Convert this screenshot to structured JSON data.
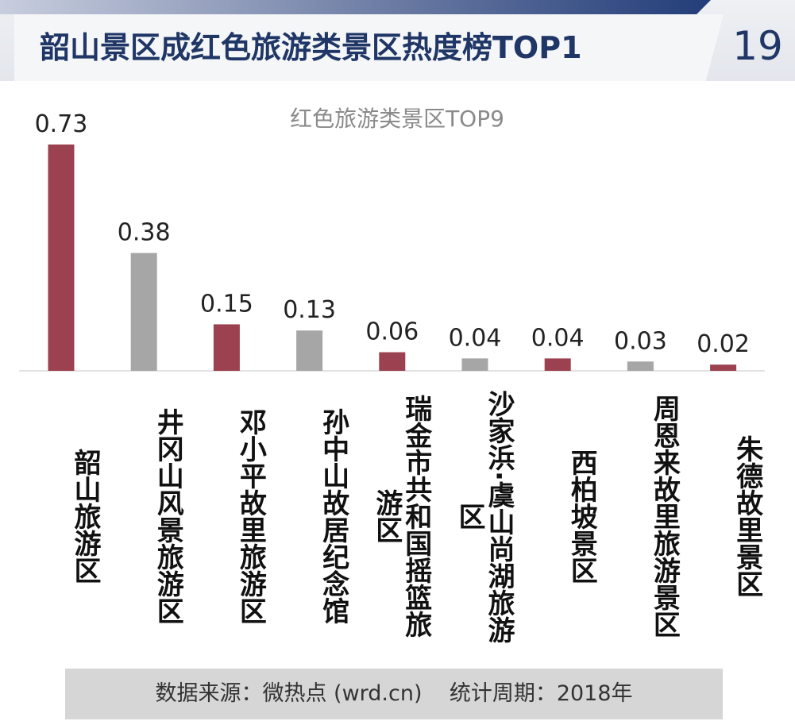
{
  "header": {
    "title": "韶山景区成红色旅游类景区热度榜TOP1",
    "page_number": "19"
  },
  "colors": {
    "highlight_bar": "#9b4150",
    "normal_bar": "#a6a6a6",
    "title_color": "#1f3666"
  },
  "chart_data": {
    "type": "bar",
    "title": "红色旅游类景区TOP9",
    "categories": [
      "韶山旅游区",
      "井冈山风景旅游区",
      "邓小平故里旅游区",
      "孙中山故居纪念馆",
      "瑞金市共和国摇篮旅游区",
      "沙家浜·虞山尚湖旅游区",
      "西柏坡景区",
      "周恩来故里旅游景区",
      "朱德故里景区"
    ],
    "values": [
      0.73,
      0.38,
      0.15,
      0.13,
      0.06,
      0.04,
      0.04,
      0.03,
      0.02
    ],
    "value_labels": [
      "0.73",
      "0.38",
      "0.15",
      "0.13",
      "0.06",
      "0.04",
      "0.04",
      "0.03",
      "0.02"
    ],
    "highlighted": [
      true,
      false,
      true,
      false,
      true,
      false,
      true,
      false,
      true
    ],
    "ylim": [
      0,
      0.73
    ],
    "grid": false,
    "legend": "none"
  },
  "footer": {
    "text": "数据来源：微热点 (wrd.cn)    统计周期：2018年"
  }
}
